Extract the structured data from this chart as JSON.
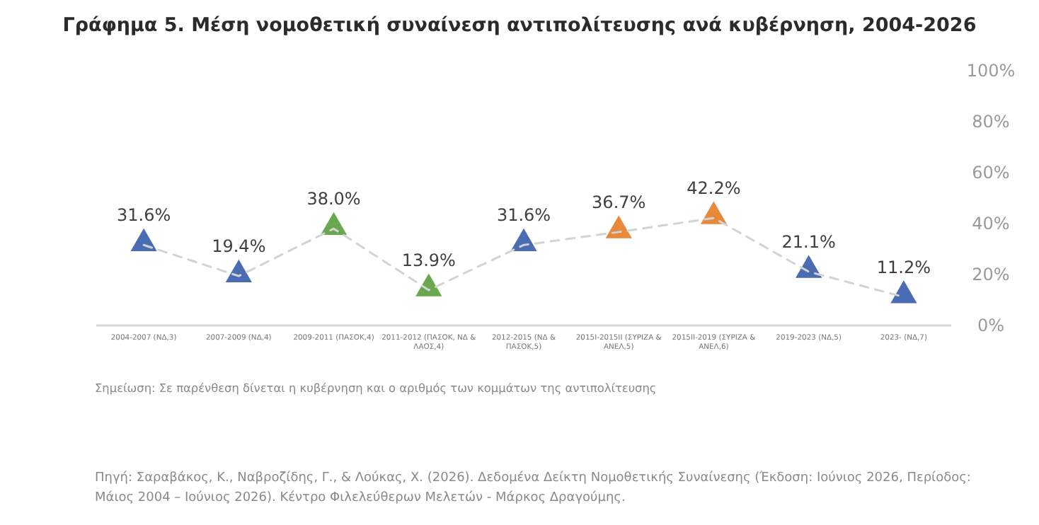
{
  "chart_data": {
    "type": "line",
    "title": "Γράφημα 5. Μέση νομοθετική συναίνεση αντιπολίτευσης ανά κυβέρνηση, 2004-2026",
    "categories": [
      "2004-2007 (ΝΔ,3)",
      "2007-2009 (ΝΔ,4)",
      "2009-2011 (ΠΑΣΟΚ,4)",
      "2011-2012 (ΠΑΣΟΚ, ΝΔ & ΛΑΟΣ,4)",
      "2012-2015 (ΝΔ & ΠΑΣΟΚ,5)",
      "2015Ι-2015ΙΙ (ΣΥΡΙΖΑ & ΑΝΕΛ,5)",
      "2015ΙΙ-2019 (ΣΥΡΙΖΑ & ΑΝΕΛ,6)",
      "2019-2023 (ΝΔ,5)",
      "2023- (ΝΔ,7)"
    ],
    "series": [
      {
        "color": "#d3d3d3",
        "colors": [
          "#4a6cb3",
          "#4a6cb3",
          "#6aa84f",
          "#6aa84f",
          "#4a6cb3",
          "#e8893a",
          "#e8893a",
          "#4a6cb3",
          "#4a6cb3"
        ],
        "values": [
          31.6,
          19.4,
          38.0,
          13.9,
          31.6,
          36.7,
          42.2,
          21.1,
          11.2
        ],
        "value_labels": [
          "31.6%",
          "19.4%",
          "38.0%",
          "13.9%",
          "31.6%",
          "36.7%",
          "42.2%",
          "21.1%",
          "11.2%"
        ]
      }
    ],
    "ylim": [
      0,
      100
    ],
    "yticks": [
      {
        "value": 0,
        "label": "0%"
      },
      {
        "value": 20,
        "label": "20%"
      },
      {
        "value": 40,
        "label": "40%"
      },
      {
        "value": 60,
        "label": "60%"
      },
      {
        "value": 80,
        "label": "80%"
      },
      {
        "value": 100,
        "label": "100%"
      }
    ],
    "marker": "triangle",
    "line_style": "dashed",
    "grid": false,
    "annotations": [
      "Σημείωση: Σε παρένθεση δίνεται η κυβέρνηση και ο αριθμός των κομμάτων της αντιπολίτευσης",
      "Πηγή: Σαραβάκος, Κ., Ναβροζίδης, Γ., & Λούκας, Χ. (2026). Δεδομένα Δείκτη Νομοθετικής Συναίνεσης (Έκδοση: Ιούνιος 2026, Περίοδος: Μάιος 2004 – Ιούνιος 2026). Κέντρο Φιλελεύθερων Μελετών - Μάρκος Δραγούμης."
    ]
  }
}
